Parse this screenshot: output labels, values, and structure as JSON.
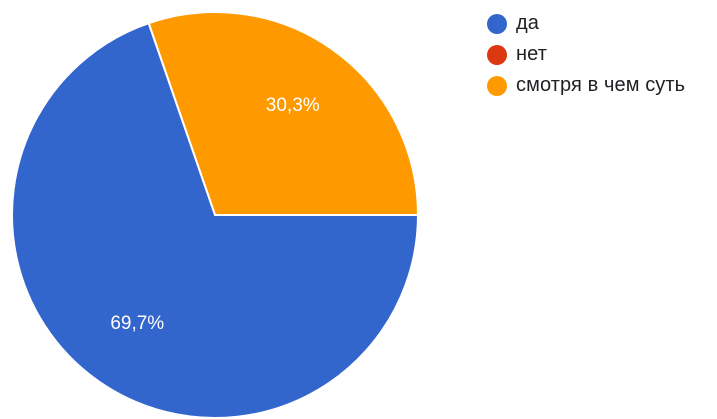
{
  "chart_data": {
    "type": "pie",
    "categories": [
      "да",
      "нет",
      "смотря в чем суть"
    ],
    "values": [
      69.7,
      0,
      30.3
    ],
    "data_labels": [
      "69,7%",
      "",
      "30,3%"
    ],
    "colors": [
      "#3366cc",
      "#dc3912",
      "#ff9900"
    ],
    "legend_position": "right",
    "title": ""
  }
}
